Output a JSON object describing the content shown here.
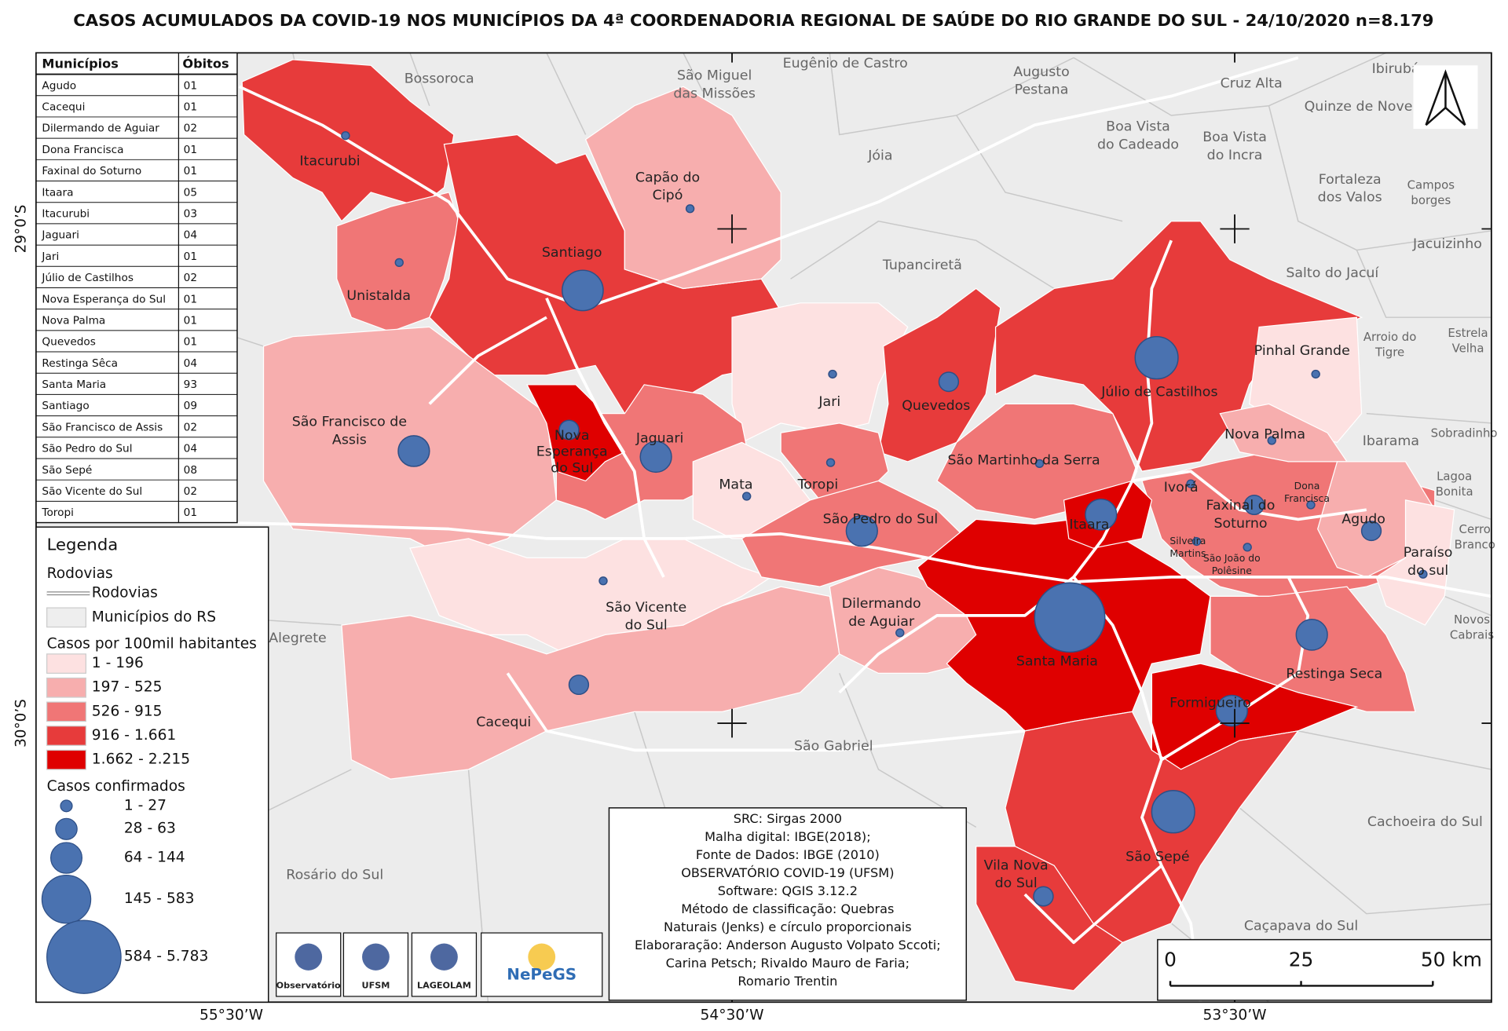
{
  "header": {
    "title": "CASOS ACUMULADOS DA COVID-19 NOS MUNICÍPIOS DA 4ª COORDENADORIA REGIONAL DE SAÚDE DO RIO GRANDE DO SUL - 24/10/2020 n=8.179"
  },
  "table": {
    "header": [
      "Municípios",
      "Óbitos"
    ],
    "rows": [
      [
        "Agudo",
        "01"
      ],
      [
        "Cacequi",
        "01"
      ],
      [
        "Dilermando de Aguiar",
        "02"
      ],
      [
        "Dona Francisca",
        "01"
      ],
      [
        "Faxinal do Soturno",
        "01"
      ],
      [
        "Itaara",
        "05"
      ],
      [
        "Itacurubi",
        "03"
      ],
      [
        "Jaguari",
        "04"
      ],
      [
        "Jari",
        "01"
      ],
      [
        "Júlio de Castilhos",
        "02"
      ],
      [
        "Nova Esperança do Sul",
        "01"
      ],
      [
        "Nova Palma",
        "01"
      ],
      [
        "Quevedos",
        "01"
      ],
      [
        "Restinga Sêca",
        "04"
      ],
      [
        "Santa Maria",
        "93"
      ],
      [
        "Santiago",
        "09"
      ],
      [
        "São Francisco de Assis",
        "02"
      ],
      [
        "São Pedro do Sul",
        "04"
      ],
      [
        "São Sepé",
        "08"
      ],
      [
        "São Vicente do Sul",
        "02"
      ],
      [
        "Toropi",
        "01"
      ]
    ]
  },
  "legend": {
    "title": "Legenda",
    "roads_heading": "Rodovias",
    "roads_item": "Rodovias",
    "municipalities_item": "Municípios do RS",
    "rate_heading": "Casos por 100mil habitantes",
    "rate_classes": [
      "1 - 196",
      "197 - 525",
      "526 - 915",
      "916 - 1.661",
      "1.662 - 2.215"
    ],
    "cases_heading": "Casos confirmados",
    "cases_classes": [
      "1 - 27",
      "28 - 63",
      "64 - 144",
      "145 - 583",
      "584 - 5.783"
    ]
  },
  "info": [
    "SRC: Sirgas 2000",
    "Malha digital: IBGE(2018);",
    "Fonte de Dados: IBGE (2010)",
    "OBSERVATÓRIO COVID-19 (UFSM)",
    "Software: QGIS 3.12.2",
    "Método de classificação: Quebras",
    "Naturais (Jenks) e círculo proporcionais",
    "Elaboraração: Anderson Augusto Volpato Sccoti;",
    "Carina Petsch; Rivaldo Mauro de Faria;",
    "Romario Trentin"
  ],
  "map": {
    "municipalities": [
      {
        "label": [
          "Itacurubi"
        ]
      },
      {
        "label": [
          "Unistalda"
        ]
      },
      {
        "label": [
          "Santiago"
        ]
      },
      {
        "label": [
          "Capão do",
          "Cipó"
        ]
      },
      {
        "label": [
          "São Francisco de",
          "Assis"
        ]
      },
      {
        "label": [
          "Jari"
        ]
      },
      {
        "label": [
          "Quevedos"
        ]
      },
      {
        "label": [
          "Júlio de Castilhos"
        ]
      },
      {
        "label": [
          "Pinhal Grande"
        ]
      },
      {
        "label": [
          "Nova Palma"
        ]
      },
      {
        "label": [
          "Nova",
          "Esperança",
          "do Sul"
        ]
      },
      {
        "label": [
          "Jaguari"
        ]
      },
      {
        "label": [
          "Mata"
        ]
      },
      {
        "label": [
          "Toropi"
        ]
      },
      {
        "label": [
          "São Pedro do Sul"
        ]
      },
      {
        "label": [
          "São Martinho da Serra"
        ]
      },
      {
        "label": [
          "Itaara"
        ]
      },
      {
        "label": [
          "Ivorá"
        ]
      },
      {
        "label": [
          "Faxinal do",
          "Soturno"
        ]
      },
      {
        "label": [
          "Dona",
          "Francisca"
        ]
      },
      {
        "label": [
          "Agudo"
        ]
      },
      {
        "label": [
          "Silveira",
          "Martins"
        ]
      },
      {
        "label": [
          "São João do",
          "Polêsine"
        ]
      },
      {
        "label": [
          "Paraíso",
          "do sul"
        ]
      },
      {
        "label": [
          "São Vicente",
          "do Sul"
        ]
      },
      {
        "label": [
          "Dilermando",
          "de Aguiar"
        ]
      },
      {
        "label": [
          "Santa Maria"
        ]
      },
      {
        "label": [
          "Restinga Seca"
        ]
      },
      {
        "label": [
          "Formigueiro"
        ]
      },
      {
        "label": [
          "Cacequi"
        ]
      },
      {
        "label": [
          "São Sepé"
        ]
      },
      {
        "label": [
          "Vila Nova",
          "do Sul"
        ]
      }
    ],
    "neighbors": [
      {
        "label": [
          "Bossoroca"
        ]
      },
      {
        "label": [
          "São Miguel",
          "das Missões"
        ]
      },
      {
        "label": [
          "Eugênio de Castro"
        ]
      },
      {
        "label": [
          "Augusto",
          "Pestana"
        ]
      },
      {
        "label": [
          "Cruz Alta"
        ]
      },
      {
        "label": [
          "Ibirubá"
        ]
      },
      {
        "label": [
          "Quinze de Novembro"
        ]
      },
      {
        "label": [
          "Boa Vista",
          "do Cadeado"
        ]
      },
      {
        "label": [
          "Boa Vista",
          "do Incra"
        ]
      },
      {
        "label": [
          "Jóia"
        ]
      },
      {
        "label": [
          "Fortaleza",
          "dos Valos"
        ]
      },
      {
        "label": [
          "Campos",
          "borges"
        ]
      },
      {
        "label": [
          "Tupanciretã"
        ]
      },
      {
        "label": [
          "Salto do Jacuí"
        ]
      },
      {
        "label": [
          "Jacuizinho"
        ]
      },
      {
        "label": [
          "Arroio do",
          "Tigre"
        ]
      },
      {
        "label": [
          "Estrela",
          "Velha"
        ]
      },
      {
        "label": [
          "Ibarama"
        ]
      },
      {
        "label": [
          "Sobradinho"
        ]
      },
      {
        "label": [
          "Lagoa",
          "Bonita"
        ]
      },
      {
        "label": [
          "Cerro",
          "Branco"
        ]
      },
      {
        "label": [
          "Novos",
          "Cabrais"
        ]
      },
      {
        "label": [
          "Alegrete"
        ]
      },
      {
        "label": [
          "São Gabriel"
        ]
      },
      {
        "label": [
          "Rosário do Sul"
        ]
      },
      {
        "label": [
          "Cachoeira do Sul"
        ]
      },
      {
        "label": [
          "Caçapava do Sul"
        ]
      }
    ],
    "coords": [
      "29°0’S",
      "30°0’S",
      "55°30’W",
      "54°30’W",
      "53°30’W"
    ],
    "scale": [
      "0",
      "25",
      "50 km"
    ],
    "logos": [
      "Observatório",
      "UFSM",
      "LAGEOLAM",
      "NePeGS"
    ]
  }
}
